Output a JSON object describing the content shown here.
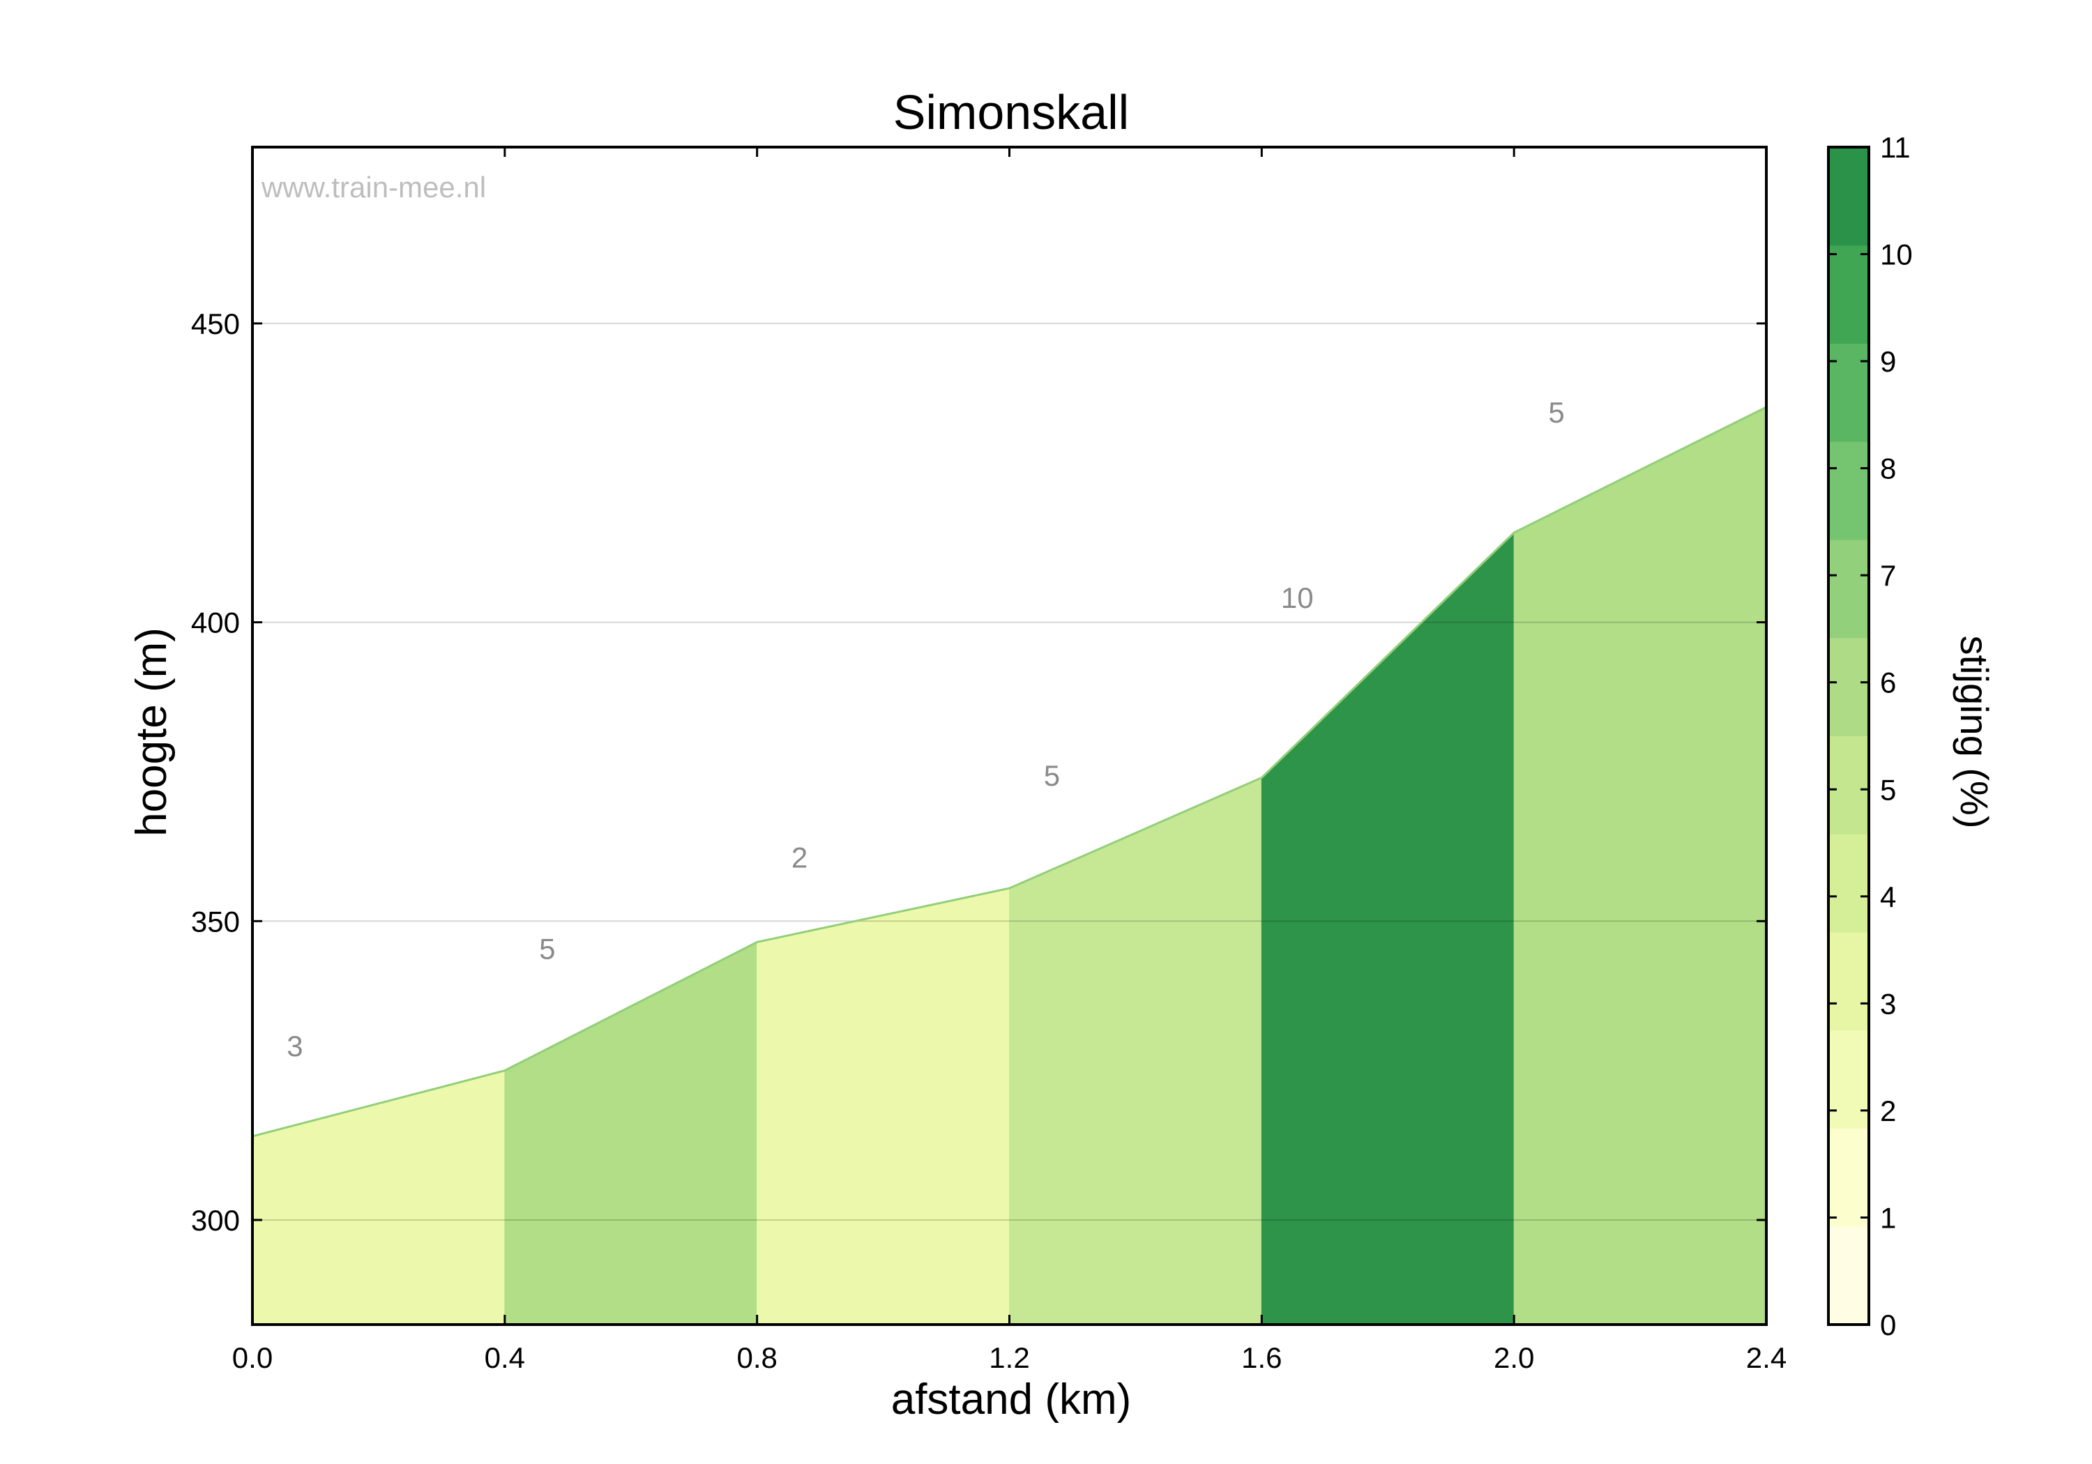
{
  "chart_data": {
    "type": "area",
    "title": "Simonskall",
    "xlabel": "afstand (km)",
    "ylabel": "hoogte (m)",
    "watermark": "www.train-mee.nl",
    "xlim": [
      0,
      2.4
    ],
    "ylim": [
      282.5,
      479.5
    ],
    "x_ticks": [
      "0.0",
      "0.4",
      "0.8",
      "1.2",
      "1.6",
      "2.0",
      "2.4"
    ],
    "y_ticks": [
      300,
      350,
      400,
      450
    ],
    "grid": true,
    "profile": {
      "x": [
        0.0,
        0.4,
        0.8,
        1.2,
        1.6,
        2.0,
        2.4
      ],
      "y": [
        314,
        325,
        346.5,
        355.5,
        374,
        415,
        436
      ]
    },
    "segment_labels": [
      "3",
      "5",
      "2",
      "5",
      "10",
      "5"
    ],
    "segment_gradient": [
      3,
      5,
      2,
      5,
      10,
      5
    ],
    "colorbar": {
      "label": "stijging (%)",
      "range": [
        0,
        11
      ],
      "ticks": [
        "0",
        "1",
        "2",
        "3",
        "4",
        "5",
        "6",
        "7",
        "8",
        "9",
        "10",
        "11"
      ],
      "colors": [
        "#fffde3",
        "#fcffcd",
        "#f2fbb6",
        "#e6f6a4",
        "#d5ef98",
        "#c3e68f",
        "#addb86",
        "#92d07c",
        "#75c46f",
        "#5ab662",
        "#40a654",
        "#2b9249"
      ]
    },
    "segment_colors": [
      "#ecf8ab",
      "#b1de87",
      "#ecf8ab",
      "#c6e894",
      "#2e944a",
      "#b1de87"
    ],
    "edge_color": "#92cf78"
  }
}
